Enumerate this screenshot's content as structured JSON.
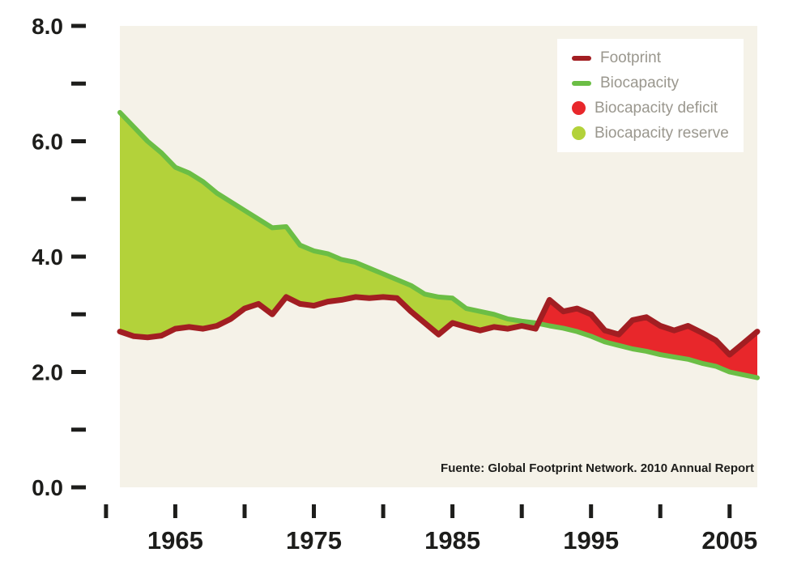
{
  "source_note": "Fuente: Global Footprint Network. 2010 Annual Report",
  "legend": {
    "text_color": "#9A978E",
    "items": [
      {
        "label": "Footprint",
        "swatch": "line",
        "color": "#A21E22"
      },
      {
        "label": "Biocapacity",
        "swatch": "line",
        "color": "#6BBE45"
      },
      {
        "label": "Biocapacity deficit",
        "swatch": "dot",
        "color": "#E8272B"
      },
      {
        "label": "Biocapacity reserve",
        "swatch": "dot",
        "color": "#B3D23A"
      }
    ]
  },
  "axes": {
    "y": {
      "min": 0,
      "max": 8,
      "minor_tick_step": 1,
      "major_tick_step": 2,
      "labels": [
        "0.0",
        "2.0",
        "4.0",
        "6.0",
        "8.0"
      ]
    },
    "x": {
      "tick_years": [
        1960,
        1965,
        1970,
        1975,
        1980,
        1985,
        1990,
        1995,
        2000,
        2005
      ],
      "label_years": [
        1965,
        1975,
        1985,
        1995,
        2005
      ]
    }
  },
  "chart_data": {
    "type": "area",
    "title": "",
    "xlabel": "",
    "ylabel": "",
    "xlim": [
      1961,
      2007
    ],
    "ylim": [
      0,
      8
    ],
    "plot_bg": "#F5F2E8",
    "axis_color": "#1D1D1B",
    "x": [
      1961,
      1962,
      1963,
      1964,
      1965,
      1966,
      1967,
      1968,
      1969,
      1970,
      1971,
      1972,
      1973,
      1974,
      1975,
      1976,
      1977,
      1978,
      1979,
      1980,
      1981,
      1982,
      1983,
      1984,
      1985,
      1986,
      1987,
      1988,
      1989,
      1990,
      1991,
      1992,
      1993,
      1994,
      1995,
      1996,
      1997,
      1998,
      1999,
      2000,
      2001,
      2002,
      2003,
      2004,
      2005,
      2006,
      2007
    ],
    "series": [
      {
        "name": "Footprint",
        "color": "#A21E22",
        "values": [
          2.7,
          2.62,
          2.6,
          2.63,
          2.75,
          2.78,
          2.75,
          2.8,
          2.92,
          3.1,
          3.18,
          3.0,
          3.3,
          3.18,
          3.15,
          3.22,
          3.25,
          3.3,
          3.28,
          3.3,
          3.28,
          3.05,
          2.85,
          2.65,
          2.85,
          2.78,
          2.72,
          2.78,
          2.75,
          2.8,
          2.75,
          3.25,
          3.05,
          3.1,
          3.0,
          2.72,
          2.65,
          2.9,
          2.95,
          2.8,
          2.72,
          2.8,
          2.68,
          2.55,
          2.3,
          2.5,
          2.7
        ]
      },
      {
        "name": "Biocapacity",
        "color": "#6BBE45",
        "values": [
          6.5,
          6.25,
          6.0,
          5.8,
          5.55,
          5.45,
          5.3,
          5.1,
          4.95,
          4.8,
          4.65,
          4.5,
          4.52,
          4.2,
          4.1,
          4.05,
          3.95,
          3.9,
          3.8,
          3.7,
          3.6,
          3.5,
          3.35,
          3.3,
          3.28,
          3.1,
          3.05,
          3.0,
          2.92,
          2.88,
          2.85,
          2.8,
          2.76,
          2.7,
          2.62,
          2.52,
          2.46,
          2.4,
          2.36,
          2.3,
          2.26,
          2.22,
          2.15,
          2.1,
          2.0,
          1.95,
          1.9
        ]
      }
    ],
    "areas": [
      {
        "name": "Biocapacity reserve",
        "color": "#B3D23A",
        "rule": "where Biocapacity > Footprint, between the two curves"
      },
      {
        "name": "Biocapacity deficit",
        "color": "#E8272B",
        "rule": "where Footprint > Biocapacity, between the two curves"
      }
    ],
    "legend_position": "top-right"
  }
}
